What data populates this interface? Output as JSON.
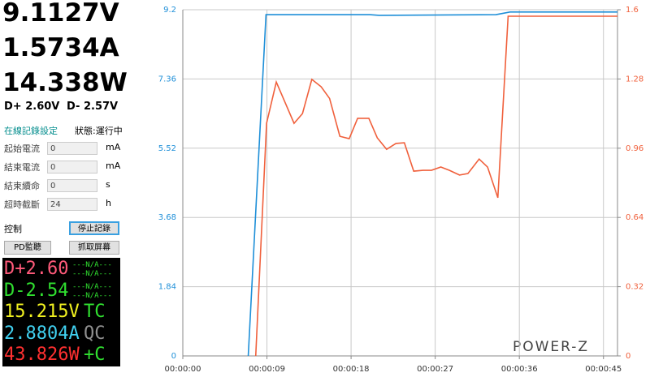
{
  "readings": {
    "voltage": "9.1127V",
    "current": "1.5734A",
    "power": "14.338W",
    "dplus": "D+ 2.60V",
    "dminus": "D- 2.57V"
  },
  "panel": {
    "title": "在線記錄設定",
    "status": "狀態:運行中",
    "rows": [
      {
        "label": "起始電流",
        "value": "0",
        "unit": "mA"
      },
      {
        "label": "結束電流",
        "value": "0",
        "unit": "mA"
      },
      {
        "label": "結束續命",
        "value": "0",
        "unit": "s"
      },
      {
        "label": "超時截斷",
        "value": "24",
        "unit": "h"
      }
    ],
    "control": "控制",
    "stop": "停止記錄",
    "pd": "PD監聽",
    "capture": "抓取屏幕"
  },
  "lcd": {
    "rows": [
      {
        "main": "D+2.60",
        "side": [
          "---N/A---",
          "---N/A---"
        ]
      },
      {
        "main": "D-2.54",
        "side": [
          "---N/A---",
          "---N/A---"
        ]
      },
      {
        "main": "15.215V",
        "side": [
          "TC"
        ]
      },
      {
        "main": "2.8804A",
        "side": [
          "QC"
        ]
      },
      {
        "main": "43.826W",
        "side": [
          "+C"
        ]
      }
    ]
  },
  "logo": "POWER-Z",
  "chart_data": {
    "type": "line",
    "grid": true,
    "xlim": [
      0,
      46.5
    ],
    "xticks": [
      {
        "value": 0,
        "label": "00:00:00"
      },
      {
        "value": 9,
        "label": "00:00:09"
      },
      {
        "value": 18,
        "label": "00:00:18"
      },
      {
        "value": 27,
        "label": "00:00:27"
      },
      {
        "value": 36,
        "label": "00:00:36"
      },
      {
        "value": 45,
        "label": "00:00:45"
      }
    ],
    "ylim": [
      0,
      9.2
    ],
    "yticks": [
      0,
      1.84,
      3.68,
      5.52,
      7.36,
      9.2
    ],
    "y2lim": [
      0,
      1.6
    ],
    "y2ticks": [
      0,
      0.32,
      0.64,
      0.96,
      1.28,
      1.6
    ],
    "series": [
      {
        "color": "#1e8fd8",
        "x": [
          7.0,
          8.9,
          20,
          21,
          33.5,
          35,
          46.5
        ],
        "values": [
          0,
          9.07,
          9.07,
          9.05,
          9.07,
          9.14,
          9.14
        ]
      },
      {
        "color": "#f0603c",
        "axis": "y2",
        "x": [
          7.8,
          8.96,
          10.0,
          11.9,
          12.8,
          13.8,
          14.8,
          15.7,
          16.8,
          17.8,
          18.7,
          19.9,
          20.8,
          21.8,
          22.8,
          23.7,
          24.7,
          25.7,
          26.6,
          27.6,
          28.5,
          29.6,
          30.5,
          31.7,
          32.6,
          33.7,
          34.8,
          46.5
        ],
        "values": [
          0,
          1.075,
          1.266,
          1.075,
          1.12,
          1.278,
          1.244,
          1.19,
          1.015,
          1.004,
          1.098,
          1.098,
          1.008,
          0.955,
          0.982,
          0.985,
          0.854,
          0.858,
          0.858,
          0.873,
          0.858,
          0.836,
          0.843,
          0.91,
          0.873,
          0.731,
          1.57,
          1.57
        ]
      }
    ]
  }
}
